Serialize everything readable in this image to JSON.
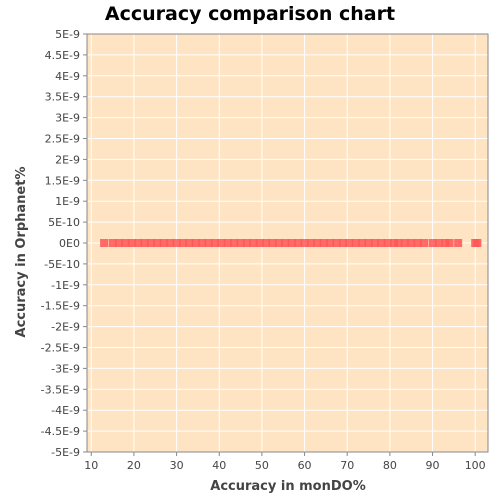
{
  "chart_data": {
    "type": "scatter",
    "title": "Accuracy comparison chart",
    "xlabel": "Accuracy in monDO%",
    "ylabel": "Accuracy in Orphanet%",
    "xlim": [
      9,
      103
    ],
    "ylim": [
      -5e-09,
      5e-09
    ],
    "x_ticks": [
      10,
      20,
      30,
      40,
      50,
      60,
      70,
      80,
      90,
      100
    ],
    "y_ticks": [
      {
        "value": 5e-09,
        "label": "5E-9"
      },
      {
        "value": 4.5e-09,
        "label": "4.5E-9"
      },
      {
        "value": 4e-09,
        "label": "4E-9"
      },
      {
        "value": 3.5e-09,
        "label": "3.5E-9"
      },
      {
        "value": 3e-09,
        "label": "3E-9"
      },
      {
        "value": 2.5e-09,
        "label": "2.5E-9"
      },
      {
        "value": 2e-09,
        "label": "2E-9"
      },
      {
        "value": 1.5e-09,
        "label": "1.5E-9"
      },
      {
        "value": 1e-09,
        "label": "1E-9"
      },
      {
        "value": 5e-10,
        "label": "5E-10"
      },
      {
        "value": 0,
        "label": "0E0"
      },
      {
        "value": -5e-10,
        "label": "-5E-10"
      },
      {
        "value": -1e-09,
        "label": "-1E-9"
      },
      {
        "value": -1.5e-09,
        "label": "-1.5E-9"
      },
      {
        "value": -2e-09,
        "label": "-2E-9"
      },
      {
        "value": -2.5e-09,
        "label": "-2.5E-9"
      },
      {
        "value": -3e-09,
        "label": "-3E-9"
      },
      {
        "value": -3.5e-09,
        "label": "-3.5E-9"
      },
      {
        "value": -4e-09,
        "label": "-4E-9"
      },
      {
        "value": -4.5e-09,
        "label": "-4.5E-9"
      },
      {
        "value": -5e-09,
        "label": "-5E-9"
      }
    ],
    "grid": true,
    "legend": "none",
    "series": [
      {
        "points": [
          {
            "x": 13.0,
            "y": 0
          },
          {
            "x": 15.0,
            "y": 0
          },
          {
            "x": 16.5,
            "y": 0
          },
          {
            "x": 18.0,
            "y": 0
          },
          {
            "x": 19.5,
            "y": 0
          },
          {
            "x": 21.0,
            "y": 0
          },
          {
            "x": 22.5,
            "y": 0
          },
          {
            "x": 24.0,
            "y": 0
          },
          {
            "x": 25.5,
            "y": 0
          },
          {
            "x": 27.0,
            "y": 0
          },
          {
            "x": 28.5,
            "y": 0
          },
          {
            "x": 30.0,
            "y": 0
          },
          {
            "x": 31.5,
            "y": 0
          },
          {
            "x": 33.0,
            "y": 0
          },
          {
            "x": 34.5,
            "y": 0
          },
          {
            "x": 36.0,
            "y": 0
          },
          {
            "x": 37.5,
            "y": 0
          },
          {
            "x": 39.0,
            "y": 0
          },
          {
            "x": 40.5,
            "y": 0
          },
          {
            "x": 42.0,
            "y": 0
          },
          {
            "x": 43.5,
            "y": 0
          },
          {
            "x": 45.0,
            "y": 0
          },
          {
            "x": 46.5,
            "y": 0
          },
          {
            "x": 48.0,
            "y": 0
          },
          {
            "x": 49.5,
            "y": 0
          },
          {
            "x": 51.0,
            "y": 0
          },
          {
            "x": 52.5,
            "y": 0
          },
          {
            "x": 54.0,
            "y": 0
          },
          {
            "x": 55.5,
            "y": 0
          },
          {
            "x": 57.0,
            "y": 0
          },
          {
            "x": 58.5,
            "y": 0
          },
          {
            "x": 60.0,
            "y": 0
          },
          {
            "x": 61.5,
            "y": 0
          },
          {
            "x": 63.0,
            "y": 0
          },
          {
            "x": 64.5,
            "y": 0
          },
          {
            "x": 66.0,
            "y": 0
          },
          {
            "x": 67.5,
            "y": 0
          },
          {
            "x": 69.0,
            "y": 0
          },
          {
            "x": 70.5,
            "y": 0
          },
          {
            "x": 72.0,
            "y": 0
          },
          {
            "x": 73.5,
            "y": 0
          },
          {
            "x": 75.0,
            "y": 0
          },
          {
            "x": 76.5,
            "y": 0
          },
          {
            "x": 78.0,
            "y": 0
          },
          {
            "x": 79.5,
            "y": 0
          },
          {
            "x": 81.0,
            "y": 0
          },
          {
            "x": 82.0,
            "y": 0
          },
          {
            "x": 83.5,
            "y": 0
          },
          {
            "x": 85.0,
            "y": 0
          },
          {
            "x": 86.5,
            "y": 0
          },
          {
            "x": 88.0,
            "y": 0
          },
          {
            "x": 90.0,
            "y": 0
          },
          {
            "x": 91.5,
            "y": 0
          },
          {
            "x": 93.0,
            "y": 0
          },
          {
            "x": 94.0,
            "y": 0
          },
          {
            "x": 96.0,
            "y": 0
          },
          {
            "x": 100.0,
            "y": 0
          },
          {
            "x": 100.5,
            "y": 0
          }
        ]
      }
    ],
    "colors": {
      "plot_background": "#FFE4C4",
      "gridline": "#FFFFFF",
      "marker": "#FF5555",
      "axis": "#888888",
      "text": "#444444"
    }
  }
}
